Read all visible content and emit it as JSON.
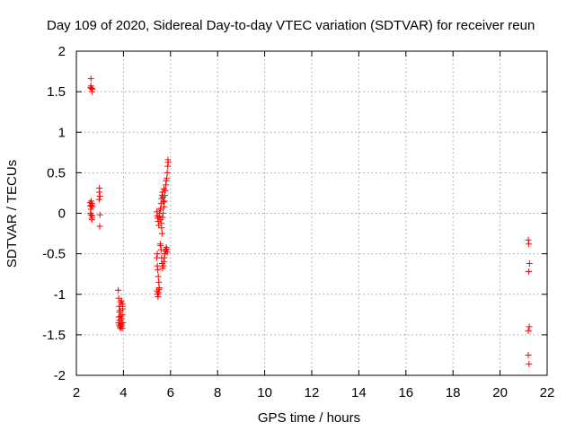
{
  "chart_data": {
    "type": "scatter",
    "title": "Day 109 of 2020, Sidereal Day-to-day VTEC variation (SDTVAR) for receiver reun",
    "xlabel": "GPS time / hours",
    "ylabel": "SDTVAR / TECUs",
    "xlim": [
      2,
      22
    ],
    "ylim": [
      -2,
      2
    ],
    "xticks": [
      2,
      4,
      6,
      8,
      10,
      12,
      14,
      16,
      18,
      20,
      22
    ],
    "xtick_labels": [
      "2",
      "4",
      "6",
      "8",
      "10",
      "12",
      "14",
      "16",
      "18",
      "20",
      "22"
    ],
    "yticks": [
      -2,
      -1.5,
      -1,
      -0.5,
      0,
      0.5,
      1,
      1.5,
      2
    ],
    "ytick_labels": [
      "-2",
      "-1.5",
      "-1",
      "-0.5",
      "0",
      "0.5",
      "1",
      "1.5",
      "2"
    ],
    "grid": true,
    "legend": "none",
    "marker": "+",
    "series": [
      {
        "name": "SDTVAR",
        "color": "#ff0000",
        "points": [
          [
            2.62,
            1.66
          ],
          [
            2.62,
            1.57
          ],
          [
            2.65,
            1.54
          ],
          [
            2.67,
            1.5
          ],
          [
            2.6,
            1.55
          ],
          [
            2.68,
            1.53
          ],
          [
            2.58,
            0.13
          ],
          [
            2.6,
            0.09
          ],
          [
            2.62,
            0.05
          ],
          [
            2.64,
            0.1
          ],
          [
            2.66,
            0.12
          ],
          [
            2.68,
            0.08
          ],
          [
            2.6,
            0.0
          ],
          [
            2.62,
            -0.02
          ],
          [
            2.65,
            -0.06
          ],
          [
            2.67,
            -0.03
          ],
          [
            2.63,
            0.15
          ],
          [
            2.66,
            -0.08
          ],
          [
            2.98,
            0.31
          ],
          [
            2.98,
            0.26
          ],
          [
            3.0,
            0.21
          ],
          [
            2.97,
            0.17
          ],
          [
            3.0,
            -0.02
          ],
          [
            2.99,
            -0.16
          ],
          [
            3.78,
            -0.95
          ],
          [
            3.8,
            -1.05
          ],
          [
            3.82,
            -1.15
          ],
          [
            3.83,
            -1.22
          ],
          [
            3.8,
            -1.28
          ],
          [
            3.79,
            -1.35
          ],
          [
            3.82,
            -1.38
          ],
          [
            3.85,
            -1.4
          ],
          [
            3.87,
            -1.42
          ],
          [
            3.9,
            -1.36
          ],
          [
            3.92,
            -1.3
          ],
          [
            3.95,
            -1.25
          ],
          [
            3.9,
            -1.4
          ],
          [
            3.93,
            -1.38
          ],
          [
            3.95,
            -1.42
          ],
          [
            3.86,
            -1.2
          ],
          [
            3.88,
            -1.1
          ],
          [
            3.92,
            -1.08
          ],
          [
            3.95,
            -1.12
          ],
          [
            3.97,
            -1.18
          ],
          [
            3.98,
            -1.35
          ],
          [
            3.84,
            -1.32
          ],
          [
            3.89,
            -1.27
          ],
          [
            3.96,
            -1.15
          ],
          [
            5.42,
            0.02
          ],
          [
            5.44,
            -0.03
          ],
          [
            5.46,
            -0.06
          ],
          [
            5.48,
            -0.1
          ],
          [
            5.5,
            -0.15
          ],
          [
            5.52,
            -0.04
          ],
          [
            5.54,
            0.0
          ],
          [
            5.56,
            0.04
          ],
          [
            5.58,
            -0.08
          ],
          [
            5.6,
            -0.12
          ],
          [
            5.62,
            -0.18
          ],
          [
            5.64,
            -0.25
          ],
          [
            5.42,
            -0.55
          ],
          [
            5.44,
            -0.65
          ],
          [
            5.46,
            -0.7
          ],
          [
            5.48,
            -0.78
          ],
          [
            5.5,
            -0.85
          ],
          [
            5.52,
            -0.92
          ],
          [
            5.43,
            -0.96
          ],
          [
            5.45,
            -1.0
          ],
          [
            5.47,
            -1.03
          ],
          [
            5.49,
            -0.98
          ],
          [
            5.51,
            -0.94
          ],
          [
            5.44,
            -0.5
          ],
          [
            5.56,
            -0.38
          ],
          [
            5.58,
            -0.4
          ],
          [
            5.6,
            -0.45
          ],
          [
            5.62,
            -0.55
          ],
          [
            5.64,
            -0.62
          ],
          [
            5.66,
            -0.68
          ],
          [
            5.58,
            0.06
          ],
          [
            5.6,
            0.12
          ],
          [
            5.62,
            0.18
          ],
          [
            5.64,
            0.22
          ],
          [
            5.66,
            0.26
          ],
          [
            5.68,
            0.2
          ],
          [
            5.7,
            0.14
          ],
          [
            5.72,
            0.08
          ],
          [
            5.74,
            0.15
          ],
          [
            5.76,
            0.22
          ],
          [
            5.78,
            0.28
          ],
          [
            5.8,
            0.35
          ],
          [
            5.82,
            0.4
          ],
          [
            5.84,
            0.43
          ],
          [
            5.86,
            0.5
          ],
          [
            5.88,
            0.58
          ],
          [
            5.9,
            0.63
          ],
          [
            5.89,
            0.66
          ],
          [
            5.7,
            -0.65
          ],
          [
            5.72,
            -0.6
          ],
          [
            5.74,
            -0.55
          ],
          [
            5.76,
            -0.5
          ],
          [
            5.78,
            -0.47
          ],
          [
            5.8,
            -0.45
          ],
          [
            5.82,
            -0.42
          ],
          [
            5.84,
            -0.44
          ],
          [
            5.86,
            -0.48
          ],
          [
            5.68,
            0.0
          ],
          [
            5.66,
            -0.05
          ],
          [
            5.72,
            0.3
          ],
          [
            21.2,
            -0.33
          ],
          [
            21.22,
            -0.38
          ],
          [
            21.25,
            -0.62
          ],
          [
            21.22,
            -0.72
          ],
          [
            21.24,
            -1.4
          ],
          [
            21.2,
            -1.45
          ],
          [
            21.2,
            -1.75
          ],
          [
            21.23,
            -1.86
          ]
        ]
      }
    ]
  }
}
